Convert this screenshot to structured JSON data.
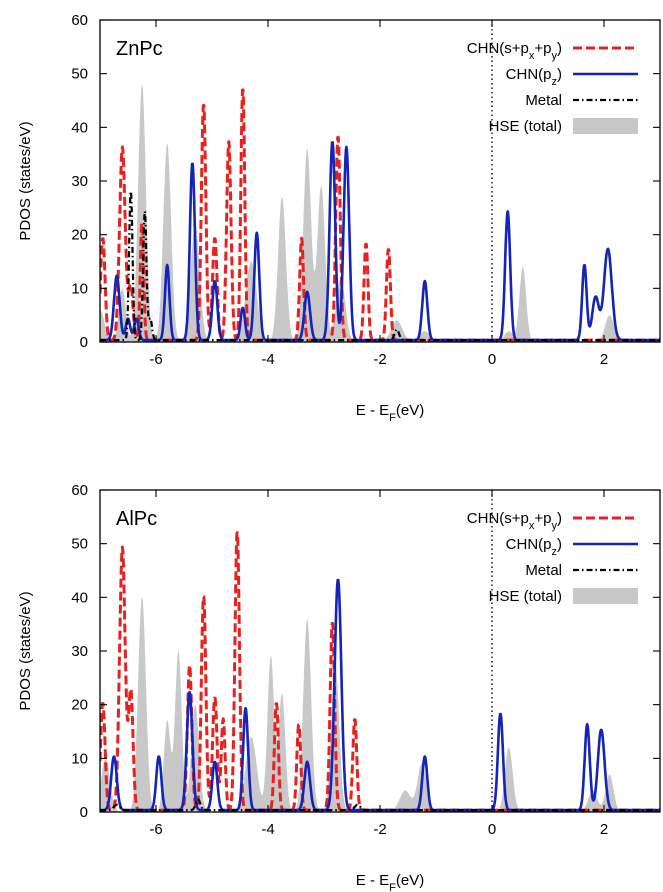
{
  "chart_data": [
    {
      "type": "area",
      "panel_label": "ZnPc",
      "xlabel_main": "E - E",
      "xlabel_sub": "F",
      "xlabel_tail": "(eV)",
      "ylabel": "PDOS (states/eV)",
      "xlim": [
        -7,
        3
      ],
      "ylim": [
        0,
        60
      ],
      "xticks": [
        -6,
        -4,
        -2,
        0,
        2
      ],
      "yticks": [
        0,
        10,
        20,
        30,
        40,
        50,
        60
      ],
      "fermi_level": 0,
      "legend_position": "top-right",
      "legend": {
        "sp": [
          "CHN(s+p",
          "x",
          "+p",
          "y",
          ")"
        ],
        "pz": [
          "CHN(p",
          "z",
          ")"
        ],
        "metal": "Metal",
        "hse": "HSE (total)"
      },
      "series": [
        {
          "key": "hse",
          "color": "#c8c8c8",
          "peaks": [
            [
              -7.0,
              6,
              0.08
            ],
            [
              -6.6,
              10,
              0.06
            ],
            [
              -6.25,
              48,
              0.07
            ],
            [
              -5.8,
              37,
              0.07
            ],
            [
              -5.3,
              22,
              0.08
            ],
            [
              -4.3,
              15,
              0.1
            ],
            [
              -3.75,
              27,
              0.07
            ],
            [
              -3.3,
              36,
              0.07
            ],
            [
              -3.05,
              29,
              0.07
            ],
            [
              -2.7,
              12,
              0.08
            ],
            [
              -1.7,
              4,
              0.1
            ],
            [
              -1.2,
              2,
              0.1
            ],
            [
              0.3,
              2,
              0.08
            ],
            [
              0.55,
              14,
              0.06
            ],
            [
              2.1,
              5,
              0.08
            ]
          ]
        },
        {
          "key": "sp",
          "color": "#e8211f",
          "peaks": [
            [
              -6.95,
              19,
              0.04
            ],
            [
              -6.6,
              36,
              0.05
            ],
            [
              -6.45,
              10,
              0.04
            ],
            [
              -6.25,
              22,
              0.03
            ],
            [
              -5.15,
              44,
              0.04
            ],
            [
              -4.95,
              19,
              0.04
            ],
            [
              -4.7,
              37,
              0.04
            ],
            [
              -4.45,
              47,
              0.035
            ],
            [
              -3.4,
              19,
              0.035
            ],
            [
              -2.75,
              38,
              0.04
            ],
            [
              -2.25,
              18,
              0.035
            ],
            [
              -1.85,
              17,
              0.035
            ]
          ]
        },
        {
          "key": "pz",
          "color": "#1424b8",
          "peaks": [
            [
              -6.7,
              12,
              0.05
            ],
            [
              -6.5,
              4,
              0.04
            ],
            [
              -6.35,
              4,
              0.04
            ],
            [
              -5.8,
              14,
              0.04
            ],
            [
              -5.35,
              33,
              0.045
            ],
            [
              -4.95,
              11,
              0.045
            ],
            [
              -4.45,
              6,
              0.04
            ],
            [
              -4.2,
              20,
              0.045
            ],
            [
              -3.3,
              9,
              0.05
            ],
            [
              -2.85,
              37,
              0.05
            ],
            [
              -2.6,
              36,
              0.05
            ],
            [
              -1.2,
              11,
              0.045
            ],
            [
              0.28,
              24,
              0.045
            ],
            [
              1.65,
              14,
              0.04
            ],
            [
              1.85,
              8,
              0.06
            ],
            [
              2.07,
              17,
              0.07
            ]
          ]
        },
        {
          "key": "metal",
          "color": "#000000",
          "peaks": [
            [
              -6.45,
              28,
              0.03
            ],
            [
              -6.2,
              24,
              0.03
            ],
            [
              -6.1,
              4,
              0.03
            ],
            [
              -1.7,
              2,
              0.04
            ]
          ]
        }
      ]
    },
    {
      "type": "area",
      "panel_label": "AlPc",
      "xlabel_main": "E - E",
      "xlabel_sub": "F",
      "xlabel_tail": "(eV)",
      "ylabel": "PDOS (states/eV)",
      "xlim": [
        -7,
        3
      ],
      "ylim": [
        0,
        60
      ],
      "xticks": [
        -6,
        -4,
        -2,
        0,
        2
      ],
      "yticks": [
        0,
        10,
        20,
        30,
        40,
        50,
        60
      ],
      "fermi_level": 0,
      "legend_position": "top-right",
      "legend": {
        "sp": [
          "CHN(s+p",
          "x",
          "+p",
          "y",
          ")"
        ],
        "pz": [
          "CHN(p",
          "z",
          ")"
        ],
        "metal": "Metal",
        "hse": "HSE (total)"
      },
      "series": [
        {
          "key": "hse",
          "color": "#c8c8c8",
          "peaks": [
            [
              -6.9,
              10,
              0.08
            ],
            [
              -6.25,
              40,
              0.07
            ],
            [
              -5.8,
              17,
              0.06
            ],
            [
              -5.6,
              30,
              0.06
            ],
            [
              -5.3,
              20,
              0.07
            ],
            [
              -4.3,
              14,
              0.1
            ],
            [
              -3.95,
              29,
              0.06
            ],
            [
              -3.75,
              22,
              0.06
            ],
            [
              -3.3,
              36,
              0.07
            ],
            [
              -2.8,
              28,
              0.07
            ],
            [
              -1.55,
              4,
              0.1
            ],
            [
              -1.25,
              9,
              0.08
            ],
            [
              0.3,
              12,
              0.07
            ],
            [
              1.8,
              4,
              0.08
            ],
            [
              2.1,
              7,
              0.07
            ]
          ]
        },
        {
          "key": "sp",
          "color": "#e8211f",
          "peaks": [
            [
              -6.95,
              20,
              0.04
            ],
            [
              -6.6,
              49,
              0.05
            ],
            [
              -6.45,
              22,
              0.04
            ],
            [
              -5.4,
              27,
              0.04
            ],
            [
              -5.15,
              40,
              0.04
            ],
            [
              -4.95,
              21,
              0.04
            ],
            [
              -4.8,
              17,
              0.035
            ],
            [
              -4.55,
              52,
              0.04
            ],
            [
              -3.85,
              20,
              0.035
            ],
            [
              -3.45,
              16,
              0.035
            ],
            [
              -2.85,
              35,
              0.04
            ],
            [
              -2.45,
              17,
              0.035
            ]
          ]
        },
        {
          "key": "pz",
          "color": "#1424b8",
          "peaks": [
            [
              -6.75,
              10,
              0.05
            ],
            [
              -5.95,
              10,
              0.045
            ],
            [
              -5.4,
              22,
              0.05
            ],
            [
              -4.95,
              9,
              0.045
            ],
            [
              -4.4,
              19,
              0.045
            ],
            [
              -3.3,
              9,
              0.05
            ],
            [
              -2.75,
              43,
              0.06
            ],
            [
              -1.2,
              10,
              0.045
            ],
            [
              0.15,
              18,
              0.045
            ],
            [
              1.7,
              16,
              0.045
            ],
            [
              1.95,
              15,
              0.06
            ]
          ]
        },
        {
          "key": "metal",
          "color": "#000000",
          "peaks": [
            [
              -6.7,
              1,
              0.05
            ],
            [
              -5.25,
              2,
              0.04
            ],
            [
              -2.4,
              1,
              0.05
            ]
          ]
        }
      ]
    }
  ]
}
